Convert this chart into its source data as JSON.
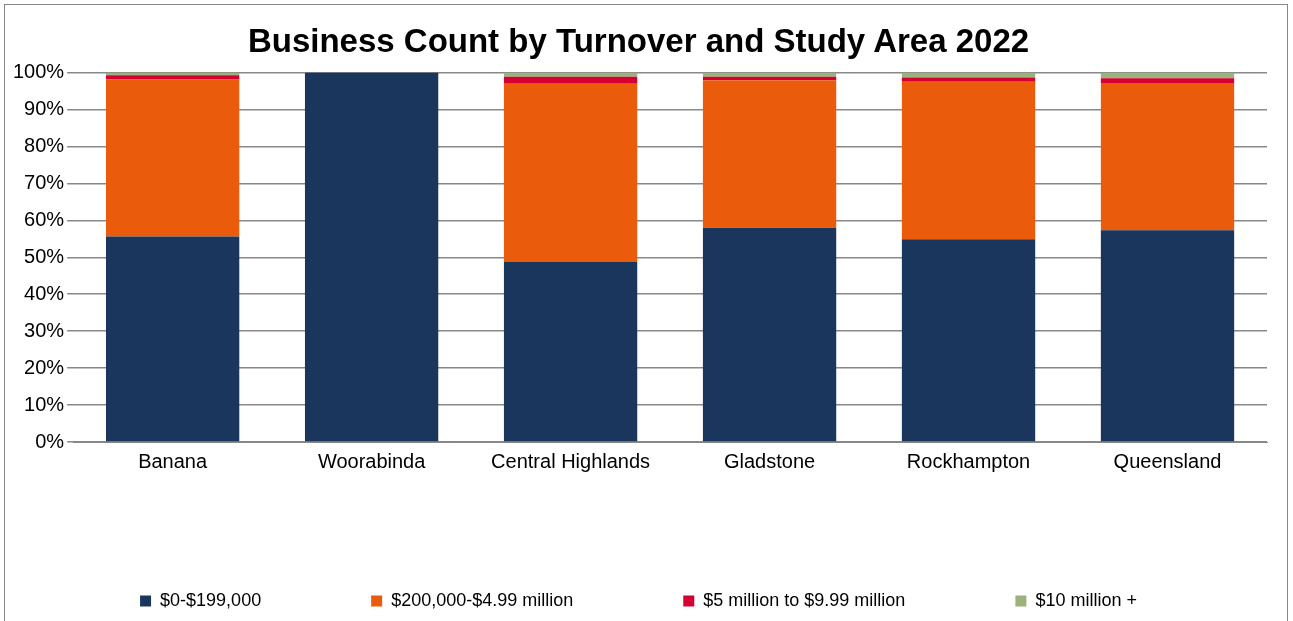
{
  "chart_data": {
    "type": "bar",
    "stacked": true,
    "title": "Business Count by Turnover and Study Area 2022",
    "categories": [
      "Banana",
      "Woorabinda",
      "Central Highlands",
      "Gladstone",
      "Rockhampton",
      "Queensland"
    ],
    "series": [
      {
        "name": "$0-$199,000",
        "color": "#1b365d",
        "values": [
          55.6,
          100,
          48.7,
          58.0,
          54.9,
          57.3
        ]
      },
      {
        "name": "$200,000-$4.99 million",
        "color": "#ea5b0c",
        "values": [
          42.5,
          0,
          48.3,
          39.9,
          42.6,
          39.9
        ]
      },
      {
        "name": "$5 million to $9.99 million",
        "color": "#d50032",
        "values": [
          1.2,
          0,
          1.9,
          1.0,
          1.2,
          1.3
        ]
      },
      {
        "name": "$10 million +",
        "color": "#9bb37a",
        "values": [
          0.7,
          0,
          1.1,
          1.1,
          1.3,
          1.5
        ]
      }
    ],
    "ylim": [
      0,
      100
    ],
    "yticks": [
      {
        "value": 0,
        "label": "0%"
      },
      {
        "value": 10,
        "label": "10%"
      },
      {
        "value": 20,
        "label": "20%"
      },
      {
        "value": 30,
        "label": "30%"
      },
      {
        "value": 40,
        "label": "40%"
      },
      {
        "value": 50,
        "label": "50%"
      },
      {
        "value": 60,
        "label": "60%"
      },
      {
        "value": 70,
        "label": "70%"
      },
      {
        "value": 80,
        "label": "80%"
      },
      {
        "value": 90,
        "label": "90%"
      },
      {
        "value": 100,
        "label": "100%"
      }
    ],
    "grid": "y",
    "legend": "bottom"
  }
}
